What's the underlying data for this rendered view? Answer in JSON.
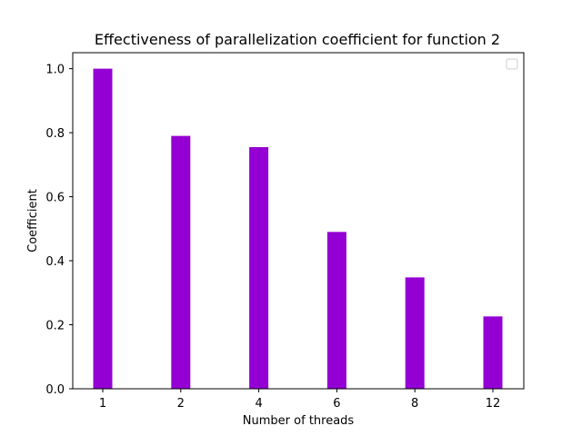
{
  "chart_data": {
    "type": "bar",
    "title": "Effectiveness of parallelization coefficient for function 2",
    "xlabel": "Number of threads",
    "ylabel": "Coefficient",
    "categories": [
      "1",
      "2",
      "4",
      "6",
      "8",
      "12"
    ],
    "values": [
      1.0,
      0.79,
      0.755,
      0.49,
      0.348,
      0.226
    ],
    "ylim": [
      0,
      1.05
    ],
    "yticks": [
      "0.0",
      "0.2",
      "0.4",
      "0.6",
      "0.8",
      "1.0"
    ],
    "bar_color": "#9400d3",
    "grid": false,
    "legend": {
      "placement": "top-right",
      "entries": []
    }
  }
}
